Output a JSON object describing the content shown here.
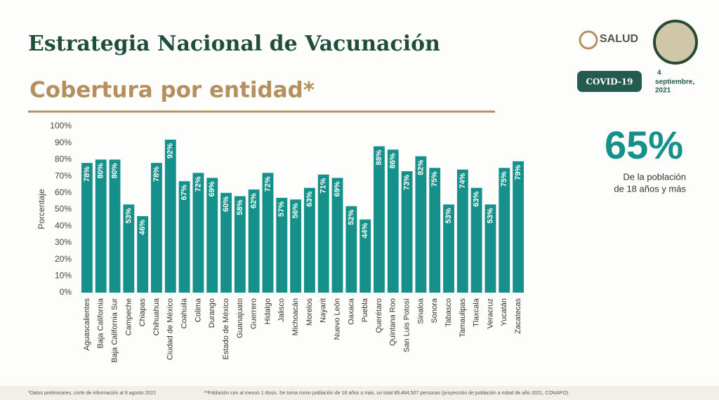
{
  "header": {
    "title": "Estrategia Nacional de Vacunación",
    "subtitle": "Cobertura por entidad*",
    "logo_text": "SALUD",
    "badge": "COVID-19",
    "date": [
      "4",
      "septiembre,",
      "2021"
    ]
  },
  "highlight": {
    "figure": "65%",
    "caption": [
      "De la población",
      "de 18 años y más"
    ]
  },
  "footnotes": [
    "*Datos preliminares, corte de información al 9 agosto  2021",
    "**Población con al menos 1 dosis. Se toma como población de 18 años o más, un total 89,484,507 personas (proyección de población a mitad de año 2021, CONAPO)."
  ],
  "chart_data": {
    "type": "bar",
    "y_label": "Porcentaje",
    "color": "#16908a",
    "categories": [
      "Aguascalientes",
      "Baja California",
      "Baja California Sur",
      "Campeche",
      "Chiapas",
      "Chihuahua",
      "Ciudad de México",
      "Coahuila",
      "Colima",
      "Durango",
      "Estado de México",
      "Guanajuato",
      "Guerrero",
      "Hidalgo",
      "Jalisco",
      "Michoacán",
      "Morelos",
      "Nayarit",
      "Nuevo León",
      "Oaxaca",
      "Puebla",
      "Querétaro",
      "Quintana Roo",
      "San Luis Potosí",
      "Sinaloa",
      "Sonora",
      "Tabasco",
      "Tamaulipas",
      "Tlaxcala",
      "Veracruz",
      "Yucatán",
      "Zacatecas"
    ],
    "values": [
      78,
      80,
      80,
      53,
      46,
      78,
      92,
      67,
      72,
      69,
      60,
      58,
      62,
      72,
      57,
      56,
      63,
      71,
      69,
      52,
      44,
      88,
      86,
      73,
      82,
      75,
      53,
      74,
      63,
      53,
      75,
      79
    ],
    "value_labels": [
      "78%",
      "80%",
      "80%",
      "53%",
      "46%",
      "78%",
      "92%",
      "67%",
      "72%",
      "69%",
      "60%",
      "58%",
      "62%",
      "72%",
      "57%",
      "56%",
      "63%",
      "71%",
      "69%",
      "52%",
      "44%",
      "88%",
      "86%",
      "73%",
      "82%",
      "75%",
      "53%",
      "74%",
      "63%",
      "53%",
      "75%",
      "79%"
    ],
    "ylim": [
      0,
      100
    ],
    "yticks": [
      {
        "value": 0,
        "label": "0%"
      },
      {
        "value": 10,
        "label": "10%"
      },
      {
        "value": 20,
        "label": "20%"
      },
      {
        "value": 30,
        "label": "30%"
      },
      {
        "value": 40,
        "label": "40%"
      },
      {
        "value": 50,
        "label": "50%"
      },
      {
        "value": 60,
        "label": "60%"
      },
      {
        "value": 70,
        "label": "70%"
      },
      {
        "value": 80,
        "label": "80%"
      },
      {
        "value": 90,
        "label": "90%"
      },
      {
        "value": 100,
        "label": "100%"
      }
    ]
  }
}
